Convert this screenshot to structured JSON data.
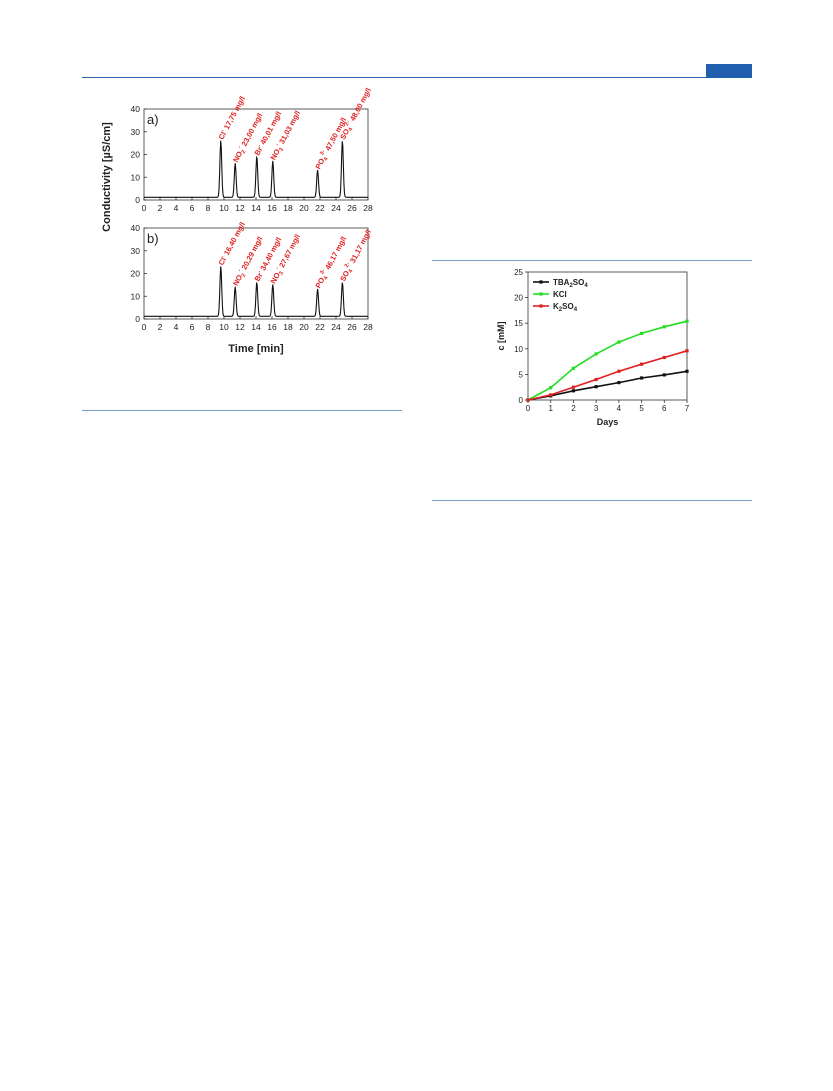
{
  "chart_data": [
    {
      "type": "line",
      "panels": [
        {
          "label": "a)",
          "peaks": [
            {
              "x": 9.6,
              "y": 25,
              "ion": "Cl",
              "charge": "-",
              "text": "17,75 mg/l"
            },
            {
              "x": 11.4,
              "y": 15,
              "ion": "NO2",
              "charge": "-",
              "text": "23,00 mg/l"
            },
            {
              "x": 14.1,
              "y": 18,
              "ion": "Br",
              "charge": "-",
              "text": "40,01 mg/l"
            },
            {
              "x": 16.1,
              "y": 16,
              "ion": "NO3",
              "charge": "-",
              "text": "31,03 mg/l"
            },
            {
              "x": 21.7,
              "y": 12,
              "ion": "PO4",
              "charge": "3-",
              "text": "47,50 mg/l"
            },
            {
              "x": 24.8,
              "y": 25,
              "ion": "SO4",
              "charge": "2-",
              "text": "48,00 mg/l"
            }
          ]
        },
        {
          "label": "b)",
          "peaks": [
            {
              "x": 9.6,
              "y": 22,
              "ion": "Cl",
              "charge": "-",
              "text": "16,40 mg/l"
            },
            {
              "x": 11.4,
              "y": 13,
              "ion": "NO2",
              "charge": "-",
              "text": "20,29 mg/l"
            },
            {
              "x": 14.1,
              "y": 15,
              "ion": "Br",
              "charge": "-",
              "text": "34,40 mg/l"
            },
            {
              "x": 16.1,
              "y": 14,
              "ion": "NO3",
              "charge": "-",
              "text": "27,67 mg/l"
            },
            {
              "x": 21.7,
              "y": 12,
              "ion": "PO4",
              "charge": "3-",
              "text": "46,17 mg/l"
            },
            {
              "x": 24.8,
              "y": 15,
              "ion": "SO4",
              "charge": "2-",
              "text": "31,17 mg/l"
            }
          ]
        }
      ],
      "xlim": [
        0,
        28
      ],
      "ylim": [
        0,
        40
      ],
      "xticks": [
        "0",
        "2",
        "4",
        "6",
        "8",
        "10",
        "12",
        "14",
        "16",
        "18",
        "20",
        "22",
        "24",
        "26",
        "28"
      ],
      "yticks": [
        "0",
        "10",
        "20",
        "30",
        "40"
      ],
      "xlabel": "Time [min]",
      "ylabel": "Conductivity [µS/cm]"
    },
    {
      "type": "line",
      "x": [
        0,
        1,
        2,
        3,
        4,
        5,
        6,
        7
      ],
      "series": [
        {
          "name": "TBA2SO4",
          "legend_main": "TBA",
          "legend_sub1": "2",
          "legend_mid": "SO",
          "legend_sub2": "4",
          "color": "#111111",
          "values": [
            0,
            0.8,
            1.8,
            2.6,
            3.4,
            4.3,
            4.9,
            5.6
          ]
        },
        {
          "name": "KCl",
          "legend_main": "KCl",
          "legend_sub1": "",
          "legend_mid": "",
          "legend_sub2": "",
          "color": "#22dd22",
          "values": [
            0,
            2.4,
            6.2,
            9.0,
            11.3,
            13.0,
            14.3,
            15.4
          ]
        },
        {
          "name": "K2SO4",
          "legend_main": "K",
          "legend_sub1": "2",
          "legend_mid": "SO",
          "legend_sub2": "4",
          "color": "#e02020",
          "values": [
            0,
            1.0,
            2.5,
            4.0,
            5.6,
            7.0,
            8.3,
            9.6
          ]
        }
      ],
      "xlim": [
        0,
        7
      ],
      "ylim": [
        0,
        25
      ],
      "xticks": [
        "0",
        "1",
        "2",
        "3",
        "4",
        "5",
        "6",
        "7"
      ],
      "yticks": [
        "0",
        "5",
        "10",
        "15",
        "20",
        "25"
      ],
      "xlabel": "Days",
      "ylabel": "c [mM]",
      "legend": "top-left"
    }
  ],
  "colors": {
    "accent": "#1f5fae",
    "rule": "#7aa0cc",
    "annotation": "#e02020"
  }
}
